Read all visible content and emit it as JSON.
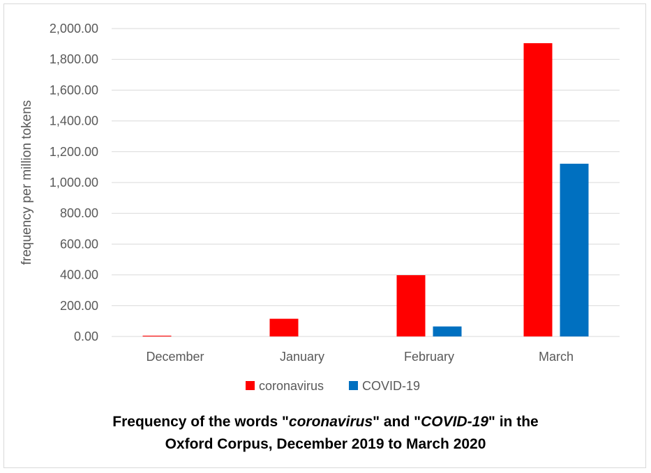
{
  "chart_data": {
    "type": "bar",
    "categories": [
      "December",
      "January",
      "February",
      "March"
    ],
    "series": [
      {
        "name": "coronavirus",
        "color": "#ff0000",
        "values": [
          5,
          115,
          398,
          1905
        ]
      },
      {
        "name": "COVID-19",
        "color": "#0070c0",
        "values": [
          0,
          0,
          65,
          1122
        ]
      }
    ],
    "ylabel": "frequency per million tokens",
    "xlabel": "",
    "ylim": [
      0,
      2000
    ],
    "yticks": [
      "0.00",
      "200.00",
      "400.00",
      "600.00",
      "800.00",
      "1,000.00",
      "1,200.00",
      "1,400.00",
      "1,600.00",
      "1,800.00",
      "2,000.00"
    ],
    "grid": true,
    "legend_position": "bottom",
    "title": {
      "line1_prefix": "Frequency of the words \"",
      "line1_term1": "coronavirus",
      "line1_mid": "\" and \"",
      "line1_term2": "COVID-19",
      "line1_suffix": "\" in the",
      "line2": "Oxford Corpus, December 2019 to March 2020"
    }
  }
}
